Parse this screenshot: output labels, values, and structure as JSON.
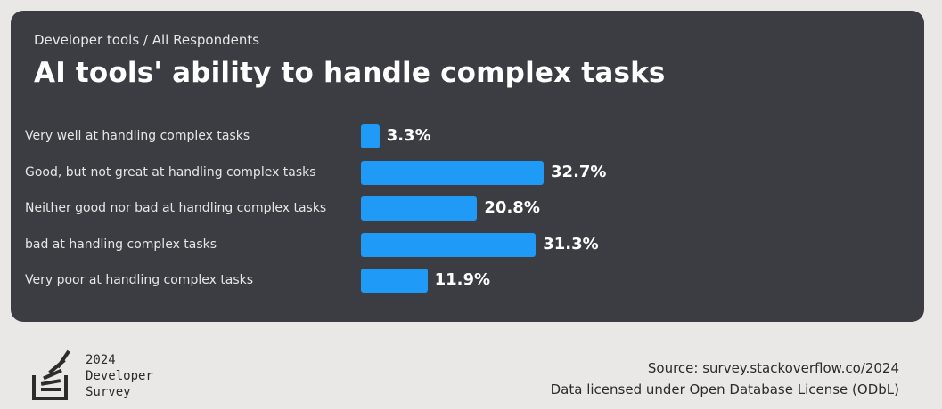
{
  "header": {
    "subtitle": "Developer tools / All Respondents",
    "title": "AI tools' ability to handle complex tasks"
  },
  "chart_data": {
    "type": "bar",
    "orientation": "horizontal",
    "categories": [
      "Very well at handling complex tasks",
      "Good, but not great at handling complex tasks",
      "Neither good nor bad at handling complex tasks",
      "bad at handling complex tasks",
      "Very poor at handling complex tasks"
    ],
    "values": [
      3.3,
      32.7,
      20.8,
      31.3,
      11.9
    ],
    "value_labels": [
      "3.3%",
      "32.7%",
      "20.8%",
      "31.3%",
      "11.9%"
    ],
    "title": "AI tools' ability to handle complex tasks",
    "subtitle": "Developer tools / All Respondents",
    "bar_color": "#1f9bf7",
    "background_color": "#3b3d42"
  },
  "footer": {
    "logo_lines": [
      "2024",
      "Developer",
      "Survey"
    ],
    "source": "Source: survey.stackoverflow.co/2024",
    "license": "Data licensed under Open Database License (ODbL)"
  }
}
